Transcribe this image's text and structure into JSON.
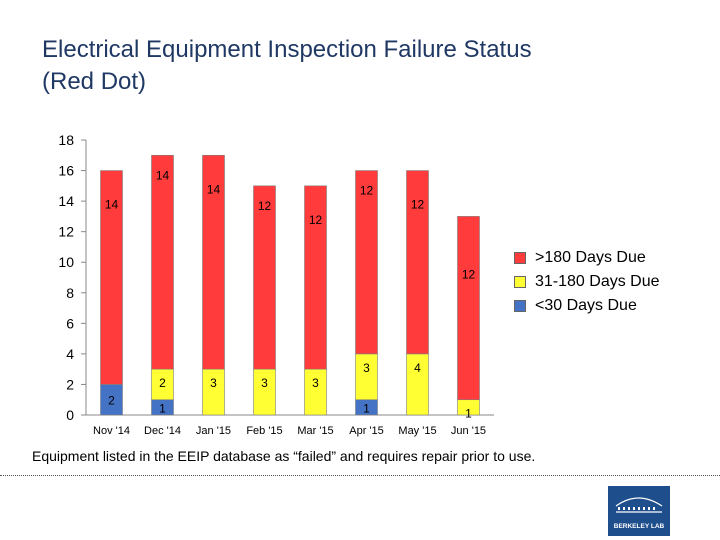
{
  "slide": {
    "title_line1": "Electrical Equipment Inspection Failure Status",
    "title_line2": "(Red Dot)",
    "footnote": "Equipment listed in the EEIP database as “failed” and requires repair prior to use.",
    "logo_text": "BERKELEY LAB",
    "title_color": "#1f3864"
  },
  "chart_data": {
    "type": "bar",
    "stacked": true,
    "title": "",
    "xlabel": "",
    "ylabel": "",
    "ylim": [
      0,
      18
    ],
    "yticks": [
      0,
      2,
      4,
      6,
      8,
      10,
      12,
      14,
      16,
      18
    ],
    "grid": false,
    "legend_position": "right",
    "categories": [
      "Nov '14",
      "Dec '14",
      "Jan '15",
      "Feb '15",
      "Mar '15",
      "Apr '15",
      "May '15",
      "Jun '15"
    ],
    "series": [
      {
        "name": "<30 Days Due",
        "color": "#4472c4",
        "values": [
          2,
          1,
          0,
          0,
          0,
          1,
          0,
          0
        ],
        "labels": [
          "2",
          "1",
          "",
          "",
          "",
          "1",
          "",
          ""
        ]
      },
      {
        "name": "31-180 Days Due",
        "color": "#ffff33",
        "values": [
          0,
          2,
          3,
          3,
          3,
          3,
          4,
          1
        ],
        "labels": [
          "",
          "2",
          "3",
          "3",
          "3",
          "3",
          "4",
          "1"
        ]
      },
      {
        "name": ">180 Days Due",
        "color": "#ff3b3b",
        "values": [
          14,
          14,
          14,
          12,
          12,
          12,
          12,
          12
        ],
        "labels": [
          "14",
          "14",
          "14",
          "12",
          "12",
          "12",
          "12",
          "12"
        ]
      }
    ],
    "legend_order": [
      ">180 Days Due",
      "31-180 Days Due",
      "<30 Days Due"
    ]
  }
}
